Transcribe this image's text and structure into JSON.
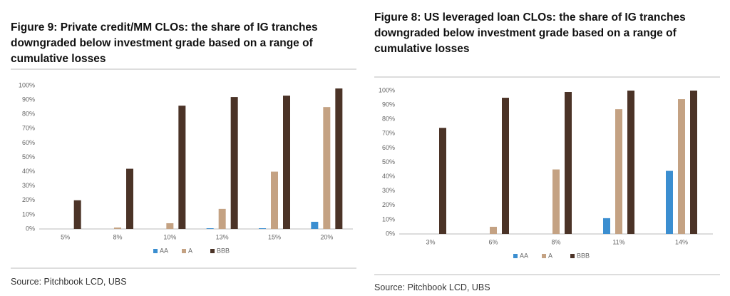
{
  "chart_data": [
    {
      "type": "bar",
      "title": "Figure 9: Private credit/MM CLOs: the share of IG tranches downgraded below investment grade based on a range of cumulative losses",
      "source": "Source: Pitchbook LCD, UBS",
      "categories": [
        "5%",
        "8%",
        "10%",
        "13%",
        "15%",
        "20%"
      ],
      "series": [
        {
          "name": "AA",
          "color": "#3b8ed0",
          "values": [
            0,
            0,
            0,
            0.5,
            0.5,
            5
          ]
        },
        {
          "name": "A",
          "color": "#c4a283",
          "values": [
            0,
            1,
            4,
            14,
            40,
            85
          ]
        },
        {
          "name": "BBB",
          "color": "#4b3327",
          "values": [
            20,
            42,
            86,
            92,
            93,
            98
          ]
        }
      ],
      "ylim": [
        0,
        100
      ],
      "yticks": [
        {
          "value": 0,
          "label": "0%"
        },
        {
          "value": 10,
          "label": "10%"
        },
        {
          "value": 20,
          "label": "20%"
        },
        {
          "value": 30,
          "label": "30%"
        },
        {
          "value": 40,
          "label": "40%"
        },
        {
          "value": 50,
          "label": "50%"
        },
        {
          "value": 60,
          "label": "60%"
        },
        {
          "value": 70,
          "label": "70%"
        },
        {
          "value": 80,
          "label": "80%"
        },
        {
          "value": 90,
          "label": "90%"
        },
        {
          "value": 100,
          "label": "100%"
        }
      ]
    },
    {
      "type": "bar",
      "title": "Figure 8: US leveraged loan CLOs: the share of IG tranches downgraded below investment grade based on a range of cumulative losses",
      "source": "Source: Pitchbook LCD, UBS",
      "categories": [
        "3%",
        "6%",
        "8%",
        "11%",
        "14%"
      ],
      "series": [
        {
          "name": "AA",
          "color": "#3b8ed0",
          "values": [
            0,
            0,
            0,
            11,
            44
          ]
        },
        {
          "name": "A",
          "color": "#c4a283",
          "values": [
            0,
            5,
            45,
            87,
            94
          ]
        },
        {
          "name": "BBB",
          "color": "#4b3327",
          "values": [
            74,
            95,
            99,
            100,
            100
          ]
        }
      ],
      "ylim": [
        0,
        100
      ],
      "yticks": [
        {
          "value": 0,
          "label": "0%"
        },
        {
          "value": 10,
          "label": "10%"
        },
        {
          "value": 20,
          "label": "20%"
        },
        {
          "value": 30,
          "label": "30%"
        },
        {
          "value": 40,
          "label": "40%"
        },
        {
          "value": 50,
          "label": "50%"
        },
        {
          "value": 60,
          "label": "60%"
        },
        {
          "value": 70,
          "label": "70%"
        },
        {
          "value": 80,
          "label": "80%"
        },
        {
          "value": 90,
          "label": "90%"
        },
        {
          "value": 100,
          "label": "100%"
        }
      ]
    }
  ]
}
